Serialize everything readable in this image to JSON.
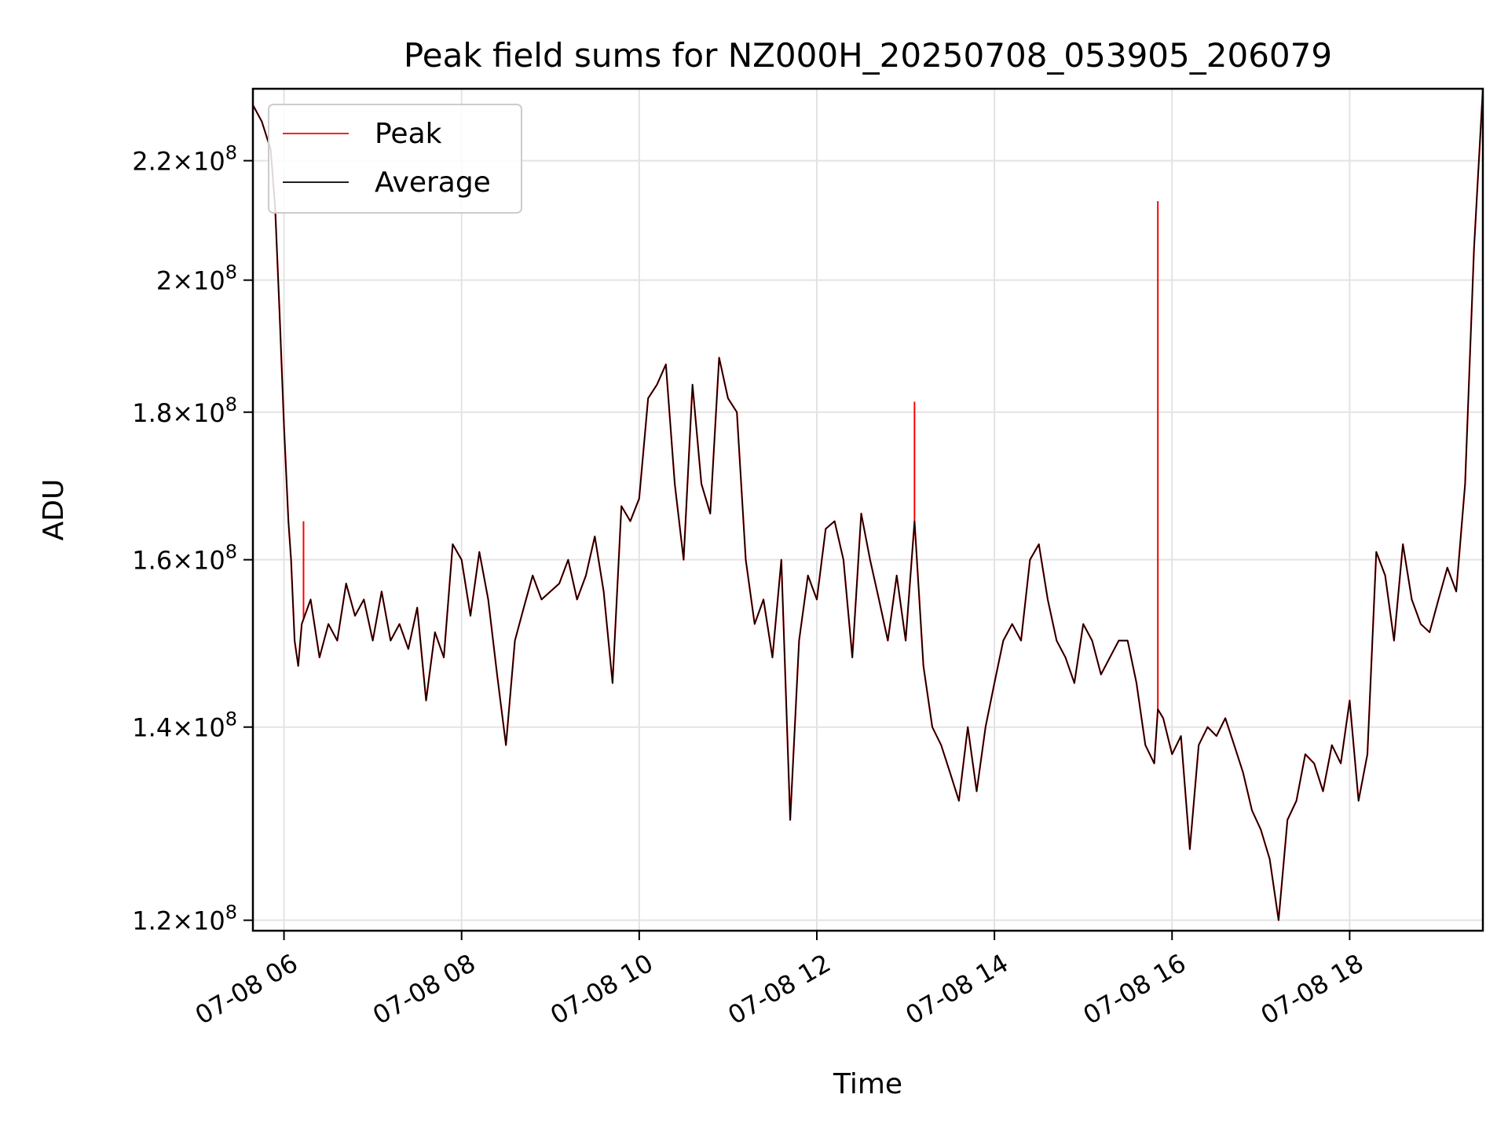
{
  "chart_data": {
    "type": "line",
    "title": "Peak field sums for NZ000H_20250708_053905_206079",
    "xlabel": "Time",
    "ylabel": "ADU",
    "y_scale": "log",
    "xlim": [
      "07-08 05:39",
      "07-08 19:30"
    ],
    "ylim": [
      119000000,
      233000000
    ],
    "x_ticks": [
      "07-08 06",
      "07-08 08",
      "07-08 10",
      "07-08 12",
      "07-08 14",
      "07-08 16",
      "07-08 18"
    ],
    "y_ticks": [
      {
        "value": 120000000,
        "mantissa": "1.2",
        "exponent": "8"
      },
      {
        "value": 140000000,
        "mantissa": "1.4",
        "exponent": "8"
      },
      {
        "value": 160000000,
        "mantissa": "1.6",
        "exponent": "8"
      },
      {
        "value": 180000000,
        "mantissa": "1.8",
        "exponent": "8"
      },
      {
        "value": 200000000,
        "mantissa": "2",
        "exponent": "8"
      },
      {
        "value": 220000000,
        "mantissa": "2.2",
        "exponent": "8"
      }
    ],
    "grid": true,
    "legend_position": "top-left",
    "x_unit": "hours since 00:00 on 07-08",
    "series": [
      {
        "name": "Peak",
        "color": "#ff0000",
        "spikes": [
          {
            "x": 6.22,
            "y": 165000000
          },
          {
            "x": 13.1,
            "y": 181500000
          },
          {
            "x": 15.84,
            "y": 213000000
          }
        ]
      },
      {
        "name": "Average",
        "color": "#000000",
        "x": [
          5.65,
          5.75,
          5.85,
          5.9,
          5.95,
          6.0,
          6.05,
          6.08,
          6.12,
          6.16,
          6.2,
          6.3,
          6.4,
          6.5,
          6.6,
          6.7,
          6.8,
          6.9,
          7.0,
          7.1,
          7.2,
          7.3,
          7.4,
          7.5,
          7.6,
          7.7,
          7.8,
          7.9,
          8.0,
          8.1,
          8.2,
          8.3,
          8.4,
          8.5,
          8.6,
          8.7,
          8.8,
          8.9,
          9.0,
          9.1,
          9.2,
          9.3,
          9.4,
          9.5,
          9.6,
          9.7,
          9.8,
          9.9,
          10.0,
          10.1,
          10.2,
          10.3,
          10.4,
          10.5,
          10.6,
          10.7,
          10.8,
          10.9,
          11.0,
          11.1,
          11.2,
          11.3,
          11.4,
          11.5,
          11.6,
          11.7,
          11.8,
          11.9,
          12.0,
          12.1,
          12.2,
          12.3,
          12.4,
          12.5,
          12.6,
          12.7,
          12.8,
          12.9,
          13.0,
          13.1,
          13.2,
          13.3,
          13.4,
          13.5,
          13.6,
          13.7,
          13.8,
          13.9,
          14.0,
          14.1,
          14.2,
          14.3,
          14.4,
          14.5,
          14.6,
          14.7,
          14.8,
          14.9,
          15.0,
          15.1,
          15.2,
          15.3,
          15.4,
          15.5,
          15.6,
          15.7,
          15.8,
          15.84,
          15.9,
          16.0,
          16.1,
          16.2,
          16.3,
          16.4,
          16.5,
          16.6,
          16.7,
          16.8,
          16.9,
          17.0,
          17.1,
          17.2,
          17.3,
          17.4,
          17.5,
          17.6,
          17.7,
          17.8,
          17.9,
          18.0,
          18.1,
          18.2,
          18.3,
          18.4,
          18.5,
          18.6,
          18.7,
          18.8,
          18.9,
          19.0,
          19.1,
          19.2,
          19.3,
          19.4,
          19.5
        ],
        "y": [
          230000000,
          227000000,
          222000000,
          212000000,
          195000000,
          178000000,
          165000000,
          160000000,
          150000000,
          147000000,
          152000000,
          155000000,
          148000000,
          152000000,
          150000000,
          157000000,
          153000000,
          155000000,
          150000000,
          156000000,
          150000000,
          152000000,
          149000000,
          154000000,
          143000000,
          151000000,
          148000000,
          162000000,
          160000000,
          153000000,
          161000000,
          155000000,
          146000000,
          138000000,
          150000000,
          154000000,
          158000000,
          155000000,
          156000000,
          157000000,
          160000000,
          155000000,
          158000000,
          163000000,
          156000000,
          145000000,
          167000000,
          165000000,
          168000000,
          182000000,
          184000000,
          187000000,
          170000000,
          160000000,
          184000000,
          170000000,
          166000000,
          188000000,
          182000000,
          180000000,
          160000000,
          152000000,
          155000000,
          148000000,
          160000000,
          130000000,
          150000000,
          158000000,
          155000000,
          164000000,
          165000000,
          160000000,
          148000000,
          166000000,
          160000000,
          155000000,
          150000000,
          158000000,
          150000000,
          165000000,
          147000000,
          140000000,
          138000000,
          135000000,
          132000000,
          140000000,
          133000000,
          140000000,
          145000000,
          150000000,
          152000000,
          150000000,
          160000000,
          162000000,
          155000000,
          150000000,
          148000000,
          145000000,
          152000000,
          150000000,
          146000000,
          148000000,
          150000000,
          150000000,
          145000000,
          138000000,
          136000000,
          142000000,
          141000000,
          137000000,
          139000000,
          127000000,
          138000000,
          140000000,
          139000000,
          141000000,
          138000000,
          135000000,
          131000000,
          129000000,
          126000000,
          120000000,
          130000000,
          132000000,
          137000000,
          136000000,
          133000000,
          138000000,
          136000000,
          143000000,
          132000000,
          137000000,
          161000000,
          158000000,
          150000000,
          162000000,
          155000000,
          152000000,
          151000000,
          155000000,
          159000000,
          156000000,
          170000000,
          205000000,
          233000000
        ]
      }
    ]
  }
}
